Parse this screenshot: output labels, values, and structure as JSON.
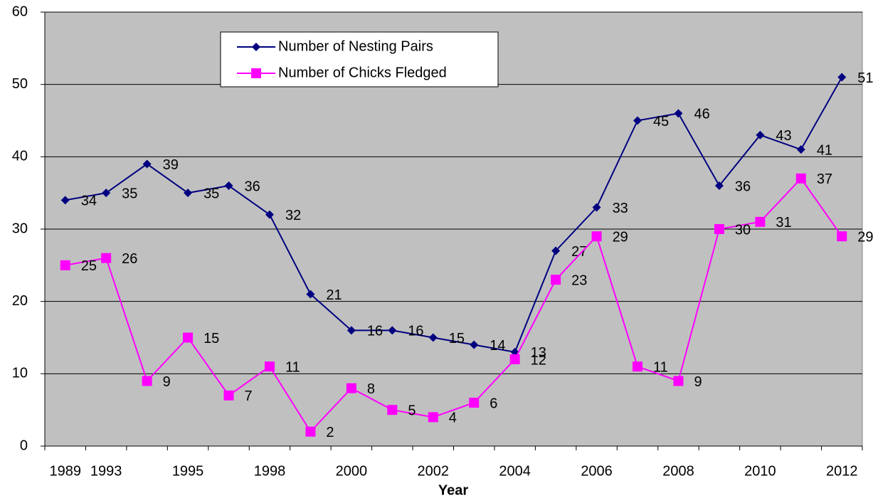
{
  "chart_data": {
    "type": "line",
    "x_label": "Year",
    "categories": [
      "1989",
      "1993",
      null,
      "1995",
      null,
      "1998",
      null,
      "2000",
      null,
      "2002",
      null,
      "2004",
      null,
      "2006",
      null,
      "2008",
      null,
      "2010",
      null,
      "2012"
    ],
    "series": [
      {
        "name": "Number of Nesting Pairs",
        "color": "#000080",
        "marker": "diamond",
        "values": [
          34,
          35,
          39,
          35,
          36,
          32,
          21,
          16,
          16,
          15,
          14,
          13,
          27,
          33,
          45,
          46,
          36,
          43,
          41,
          51
        ]
      },
      {
        "name": "Number of Chicks Fledged",
        "color": "#ff00ff",
        "marker": "square",
        "values": [
          25,
          26,
          9,
          15,
          7,
          11,
          2,
          8,
          5,
          4,
          6,
          12,
          23,
          29,
          11,
          9,
          30,
          31,
          37,
          29
        ]
      }
    ],
    "ylim": [
      0,
      60
    ],
    "yticks": [
      0,
      10,
      20,
      30,
      40,
      50,
      60
    ],
    "grid": true
  }
}
